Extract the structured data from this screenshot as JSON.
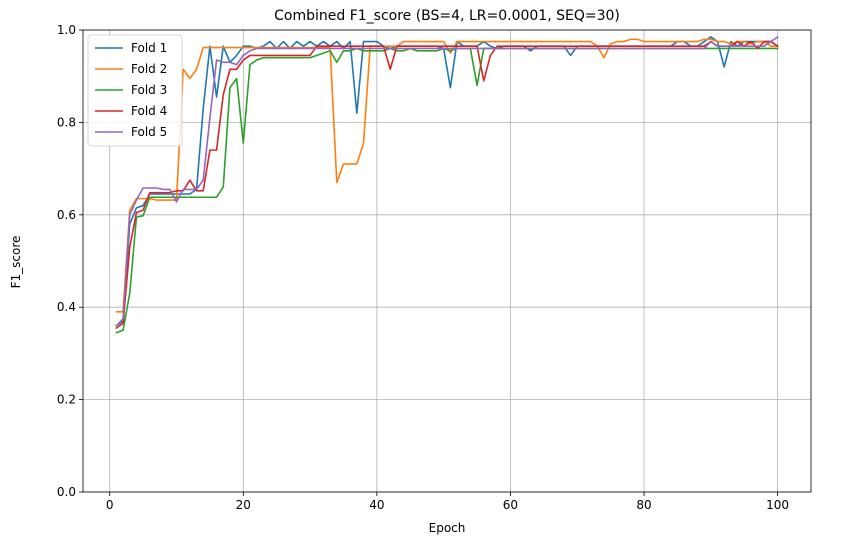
{
  "chart_data": {
    "type": "line",
    "title": "Combined F1_score (BS=4, LR=0.0001, SEQ=30)",
    "xlabel": "Epoch",
    "ylabel": "F1_score",
    "xlim": [
      -4,
      105
    ],
    "ylim": [
      0,
      1.0
    ],
    "xticks": [
      0,
      20,
      40,
      60,
      80,
      100
    ],
    "yticks": [
      0.0,
      0.2,
      0.4,
      0.6,
      0.8,
      1.0
    ],
    "xtick_labels": [
      "0",
      "20",
      "40",
      "60",
      "80",
      "100"
    ],
    "ytick_labels": [
      "0.0",
      "0.2",
      "0.4",
      "0.6",
      "0.8",
      "1.0"
    ],
    "grid": true,
    "legend_position": "top-left",
    "x": [
      1,
      2,
      3,
      4,
      5,
      6,
      7,
      8,
      9,
      10,
      11,
      12,
      13,
      14,
      15,
      16,
      17,
      18,
      19,
      20,
      21,
      22,
      23,
      24,
      25,
      26,
      27,
      28,
      29,
      30,
      31,
      32,
      33,
      34,
      35,
      36,
      37,
      38,
      39,
      40,
      41,
      42,
      43,
      44,
      45,
      46,
      47,
      48,
      49,
      50,
      51,
      52,
      53,
      54,
      55,
      56,
      57,
      58,
      59,
      60,
      61,
      62,
      63,
      64,
      65,
      66,
      67,
      68,
      69,
      70,
      71,
      72,
      73,
      74,
      75,
      76,
      77,
      78,
      79,
      80,
      81,
      82,
      83,
      84,
      85,
      86,
      87,
      88,
      89,
      90,
      91,
      92,
      93,
      94,
      95,
      96,
      97,
      98,
      99,
      100
    ],
    "series": [
      {
        "name": "Fold 1",
        "color": "#1f77b4",
        "values": [
          0.36,
          0.37,
          0.58,
          0.615,
          0.62,
          0.645,
          0.645,
          0.645,
          0.645,
          0.645,
          0.645,
          0.645,
          0.655,
          0.83,
          0.965,
          0.855,
          0.965,
          0.93,
          0.945,
          0.965,
          0.965,
          0.96,
          0.965,
          0.975,
          0.96,
          0.975,
          0.96,
          0.975,
          0.965,
          0.975,
          0.965,
          0.975,
          0.965,
          0.975,
          0.96,
          0.975,
          0.82,
          0.975,
          0.975,
          0.975,
          0.965,
          0.96,
          0.965,
          0.965,
          0.965,
          0.965,
          0.965,
          0.965,
          0.965,
          0.96,
          0.875,
          0.975,
          0.965,
          0.965,
          0.965,
          0.975,
          0.965,
          0.96,
          0.965,
          0.965,
          0.965,
          0.965,
          0.955,
          0.965,
          0.965,
          0.965,
          0.965,
          0.965,
          0.945,
          0.965,
          0.965,
          0.965,
          0.965,
          0.965,
          0.965,
          0.965,
          0.965,
          0.965,
          0.965,
          0.965,
          0.965,
          0.965,
          0.965,
          0.965,
          0.975,
          0.975,
          0.965,
          0.965,
          0.975,
          0.985,
          0.975,
          0.92,
          0.975,
          0.965,
          0.975,
          0.975,
          0.975,
          0.975,
          0.975,
          0.965
        ]
      },
      {
        "name": "Fold 2",
        "color": "#ff7f0e",
        "values": [
          0.39,
          0.39,
          0.61,
          0.635,
          0.635,
          0.635,
          0.632,
          0.632,
          0.632,
          0.632,
          0.915,
          0.895,
          0.915,
          0.962,
          0.962,
          0.962,
          0.962,
          0.962,
          0.962,
          0.962,
          0.962,
          0.962,
          0.962,
          0.962,
          0.962,
          0.962,
          0.962,
          0.962,
          0.962,
          0.962,
          0.962,
          0.962,
          0.962,
          0.67,
          0.71,
          0.71,
          0.71,
          0.755,
          0.965,
          0.965,
          0.965,
          0.965,
          0.965,
          0.975,
          0.975,
          0.975,
          0.975,
          0.975,
          0.975,
          0.975,
          0.95,
          0.975,
          0.975,
          0.975,
          0.975,
          0.975,
          0.975,
          0.975,
          0.975,
          0.975,
          0.975,
          0.975,
          0.975,
          0.975,
          0.975,
          0.975,
          0.975,
          0.975,
          0.975,
          0.975,
          0.975,
          0.975,
          0.965,
          0.94,
          0.97,
          0.975,
          0.975,
          0.98,
          0.98,
          0.975,
          0.975,
          0.975,
          0.975,
          0.975,
          0.975,
          0.975,
          0.975,
          0.975,
          0.98,
          0.98,
          0.975,
          0.975,
          0.97,
          0.975,
          0.975,
          0.97,
          0.975,
          0.975,
          0.965,
          0.965
        ]
      },
      {
        "name": "Fold 3",
        "color": "#2ca02c",
        "values": [
          0.345,
          0.35,
          0.43,
          0.595,
          0.598,
          0.638,
          0.638,
          0.638,
          0.638,
          0.638,
          0.638,
          0.638,
          0.638,
          0.638,
          0.638,
          0.638,
          0.66,
          0.875,
          0.895,
          0.755,
          0.925,
          0.935,
          0.94,
          0.94,
          0.94,
          0.94,
          0.94,
          0.94,
          0.94,
          0.94,
          0.945,
          0.95,
          0.955,
          0.93,
          0.955,
          0.955,
          0.96,
          0.955,
          0.955,
          0.955,
          0.955,
          0.96,
          0.955,
          0.955,
          0.96,
          0.955,
          0.955,
          0.955,
          0.955,
          0.96,
          0.955,
          0.96,
          0.96,
          0.96,
          0.88,
          0.96,
          0.96,
          0.96,
          0.96,
          0.96,
          0.96,
          0.96,
          0.96,
          0.96,
          0.96,
          0.96,
          0.96,
          0.96,
          0.96,
          0.96,
          0.96,
          0.96,
          0.96,
          0.96,
          0.96,
          0.96,
          0.96,
          0.96,
          0.96,
          0.96,
          0.96,
          0.96,
          0.96,
          0.96,
          0.96,
          0.96,
          0.96,
          0.96,
          0.96,
          0.96,
          0.96,
          0.96,
          0.96,
          0.96,
          0.96,
          0.96,
          0.96,
          0.96,
          0.96,
          0.96
        ]
      },
      {
        "name": "Fold 4",
        "color": "#d62728",
        "values": [
          0.355,
          0.365,
          0.53,
          0.605,
          0.61,
          0.648,
          0.648,
          0.648,
          0.648,
          0.652,
          0.652,
          0.675,
          0.652,
          0.652,
          0.74,
          0.74,
          0.86,
          0.915,
          0.915,
          0.935,
          0.945,
          0.945,
          0.945,
          0.945,
          0.945,
          0.945,
          0.945,
          0.945,
          0.945,
          0.945,
          0.965,
          0.965,
          0.965,
          0.965,
          0.965,
          0.965,
          0.965,
          0.965,
          0.965,
          0.965,
          0.965,
          0.915,
          0.965,
          0.965,
          0.965,
          0.965,
          0.965,
          0.965,
          0.965,
          0.965,
          0.965,
          0.965,
          0.965,
          0.965,
          0.965,
          0.89,
          0.945,
          0.965,
          0.965,
          0.965,
          0.965,
          0.965,
          0.965,
          0.965,
          0.965,
          0.965,
          0.965,
          0.965,
          0.965,
          0.965,
          0.965,
          0.965,
          0.965,
          0.965,
          0.965,
          0.965,
          0.965,
          0.965,
          0.965,
          0.965,
          0.965,
          0.965,
          0.965,
          0.965,
          0.965,
          0.965,
          0.965,
          0.965,
          0.965,
          0.975,
          0.965,
          0.965,
          0.965,
          0.975,
          0.965,
          0.975,
          0.96,
          0.975,
          0.975,
          0.965
        ]
      },
      {
        "name": "Fold 5",
        "color": "#9467bd",
        "values": [
          0.36,
          0.375,
          0.6,
          0.632,
          0.658,
          0.658,
          0.658,
          0.655,
          0.655,
          0.628,
          0.655,
          0.655,
          0.655,
          0.675,
          0.81,
          0.935,
          0.93,
          0.93,
          0.925,
          0.945,
          0.955,
          0.96,
          0.96,
          0.96,
          0.96,
          0.96,
          0.96,
          0.96,
          0.96,
          0.96,
          0.96,
          0.96,
          0.96,
          0.96,
          0.96,
          0.96,
          0.96,
          0.96,
          0.96,
          0.96,
          0.96,
          0.96,
          0.96,
          0.96,
          0.96,
          0.96,
          0.96,
          0.96,
          0.96,
          0.96,
          0.96,
          0.96,
          0.96,
          0.96,
          0.96,
          0.96,
          0.96,
          0.96,
          0.96,
          0.96,
          0.96,
          0.96,
          0.96,
          0.96,
          0.96,
          0.96,
          0.96,
          0.96,
          0.96,
          0.96,
          0.96,
          0.96,
          0.96,
          0.96,
          0.96,
          0.96,
          0.96,
          0.96,
          0.96,
          0.96,
          0.96,
          0.96,
          0.96,
          0.96,
          0.96,
          0.96,
          0.96,
          0.96,
          0.96,
          0.975,
          0.965,
          0.965,
          0.965,
          0.965,
          0.965,
          0.965,
          0.965,
          0.965,
          0.975,
          0.985
        ]
      }
    ]
  }
}
